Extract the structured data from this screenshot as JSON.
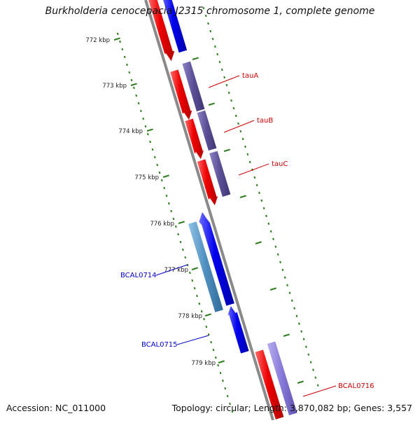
{
  "title": "Burkholderia cenocepacia J2315 chromosome 1, complete genome",
  "footer": {
    "accession": "Accession: NC_011000",
    "summary": "Topology: circular; Length: 3,870,082 bp; Genes: 3,557"
  },
  "scale_labels": [
    "772 kbp",
    "773 kbp",
    "774 kbp",
    "775 kbp",
    "776 kbp",
    "777 kbp",
    "778 kbp",
    "779 kbp"
  ],
  "gene_labels": [
    {
      "text": "tauA",
      "color": "#cc0000"
    },
    {
      "text": "tauB",
      "color": "#cc0000"
    },
    {
      "text": "tauC",
      "color": "#cc0000"
    },
    {
      "text": "BCAL0714",
      "color": "#0000cc"
    },
    {
      "text": "BCAL0715",
      "color": "#0000cc"
    },
    {
      "text": "BCAL0716",
      "color": "#cc0000"
    }
  ],
  "colors": {
    "backbone": "#8a8a8a",
    "forward_cds": "#ee0000",
    "forward_gene": "#0000ee",
    "reverse_cds": "#5a4f96",
    "reverse_gene_light": "#4f8fc0",
    "scale_ticks": "#2e7d1e"
  }
}
